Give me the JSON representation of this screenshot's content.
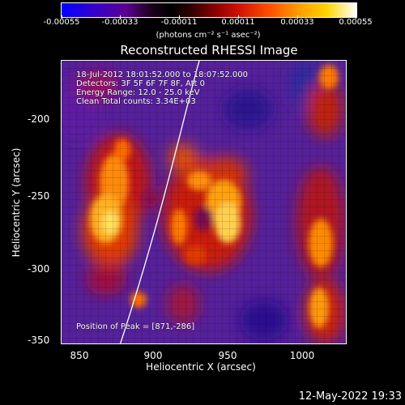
{
  "colorbar": {
    "ticks": [
      "-0.00055",
      "-0.00033",
      "-0.00011",
      "0.00011",
      "0.00033",
      "0.00055"
    ],
    "units": "(photons cm⁻² s⁻¹ asec⁻²)"
  },
  "plot": {
    "title": "Reconstructed RHESSI Image",
    "info_lines": [
      "18-Jul-2012 18:01:52.000 to 18:07:52.000",
      "Detectors: 3F 5F 6F 7F 8F, Att 0",
      "Energy Range: 12.0 - 25.0 keV",
      "Clean      Total counts: 3.34E+03"
    ],
    "peak_text": "Position of Peak = [871,-286]",
    "x_axis_label": "Heliocentric X (arcsec)",
    "y_axis_label": "Heliocentric Y (arcsec)",
    "x_ticks": [
      "850",
      "900",
      "950",
      "1000"
    ],
    "y_ticks": [
      "-200",
      "-250",
      "-300",
      "-350"
    ]
  },
  "footer": {
    "date": "12-May-2022 19:33"
  }
}
